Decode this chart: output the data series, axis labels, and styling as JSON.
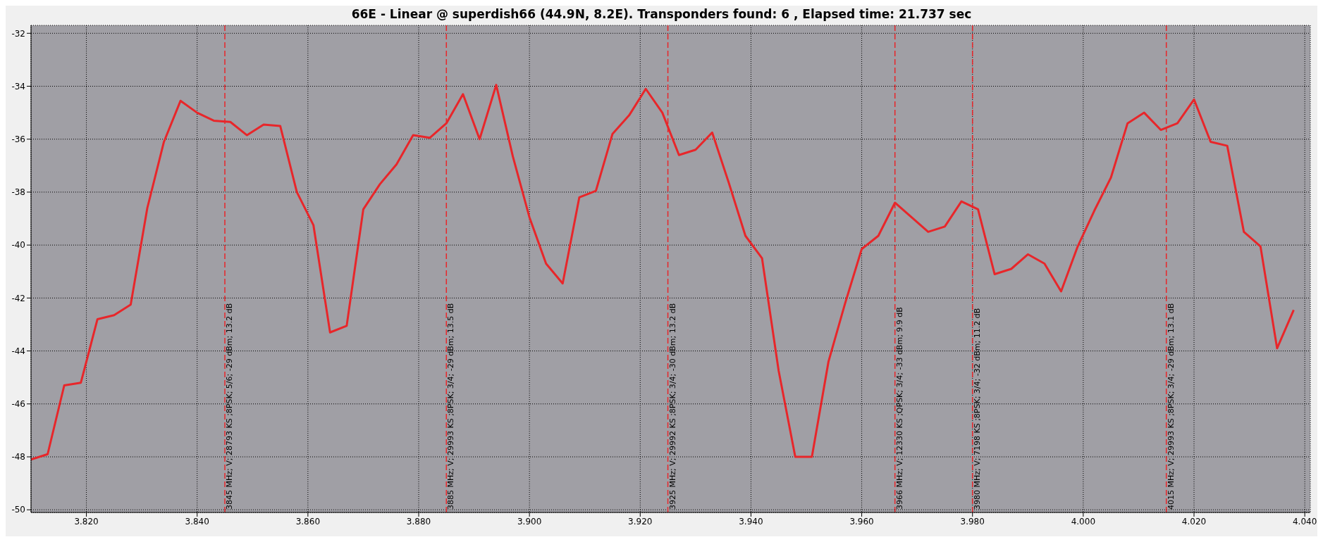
{
  "chart_data": {
    "type": "line",
    "title": "66E - Linear @ superdish66 (44.9N, 8.2E). Transponders found: 6 , Elapsed time: 21.737 sec",
    "x": [
      3.81,
      3.813,
      3.816,
      3.819,
      3.822,
      3.825,
      3.828,
      3.831,
      3.834,
      3.837,
      3.84,
      3.843,
      3.846,
      3.849,
      3.852,
      3.855,
      3.858,
      3.861,
      3.864,
      3.867,
      3.87,
      3.873,
      3.876,
      3.879,
      3.882,
      3.885,
      3.888,
      3.891,
      3.894,
      3.897,
      3.9,
      3.903,
      3.906,
      3.909,
      3.912,
      3.915,
      3.918,
      3.921,
      3.924,
      3.927,
      3.93,
      3.933,
      3.936,
      3.939,
      3.942,
      3.945,
      3.948,
      3.951,
      3.954,
      3.957,
      3.96,
      3.963,
      3.966,
      3.969,
      3.972,
      3.975,
      3.978,
      3.981,
      3.984,
      3.987,
      3.99,
      3.993,
      3.996,
      3.999,
      4.002,
      4.005,
      4.008,
      4.011,
      4.014,
      4.017,
      4.02,
      4.023,
      4.026,
      4.029,
      4.032,
      4.035,
      4.038
    ],
    "series": [
      {
        "color": "#e8262a",
        "values": [
          -48.1,
          -47.9,
          -45.3,
          -45.2,
          -42.8,
          -42.65,
          -42.25,
          -38.6,
          -36.1,
          -34.55,
          -35.0,
          -35.3,
          -35.35,
          -35.85,
          -35.45,
          -35.5,
          -38.0,
          -39.25,
          -43.3,
          -43.05,
          -38.65,
          -37.7,
          -36.95,
          -35.85,
          -35.95,
          -35.4,
          -34.3,
          -36.0,
          -33.95,
          -36.65,
          -38.95,
          -40.7,
          -41.45,
          -38.2,
          -37.95,
          -35.8,
          -35.1,
          -34.1,
          -35.0,
          -36.6,
          -36.4,
          -35.75,
          -37.65,
          -39.65,
          -40.5,
          -44.75,
          -48.0,
          -48.0,
          -44.4,
          -42.2,
          -40.15,
          -39.65,
          -38.4,
          -38.95,
          -39.5,
          -39.3,
          -38.35,
          -38.65,
          -41.1,
          -40.9,
          -40.35,
          -40.7,
          -41.75,
          -40.05,
          -38.7,
          -37.45,
          -35.4,
          -35.0,
          -35.65,
          -35.4,
          -34.5,
          -36.1,
          -36.25,
          -39.5,
          -40.05,
          -43.9,
          -42.45
        ]
      }
    ],
    "xlim": [
      3.81,
      4.041
    ],
    "xticks": [
      {
        "value": 3.82,
        "label": "3.820"
      },
      {
        "value": 3.84,
        "label": "3.840"
      },
      {
        "value": 3.86,
        "label": "3.860"
      },
      {
        "value": 3.88,
        "label": "3.880"
      },
      {
        "value": 3.9,
        "label": "3.900"
      },
      {
        "value": 3.92,
        "label": "3.920"
      },
      {
        "value": 3.94,
        "label": "3.940"
      },
      {
        "value": 3.96,
        "label": "3.960"
      },
      {
        "value": 3.98,
        "label": "3.980"
      },
      {
        "value": 4.0,
        "label": "4.000"
      },
      {
        "value": 4.02,
        "label": "4.020"
      },
      {
        "value": 4.04,
        "label": "4.040"
      }
    ],
    "ylim": [
      -50.1,
      -31.7
    ],
    "yticks": [
      -50,
      -48,
      -46,
      -44,
      -42,
      -40,
      -38,
      -36,
      -34,
      -32
    ],
    "grid": true,
    "legend": false,
    "marker": "none",
    "line_style": "solid",
    "ref_lines": [
      {
        "axis": "x",
        "value": 3.845,
        "label": "3845 MHz; V; 28793 KS ;8PSK; 5/6; -29 dBm; 13.2 dB",
        "color": "#e8262a",
        "line_style": "dashed"
      },
      {
        "axis": "x",
        "value": 3.885,
        "label": "3885 MHz; V; 29993 KS ;8PSK; 3/4; -29 dBm; 13.5 dB",
        "color": "#e8262a",
        "line_style": "dashed"
      },
      {
        "axis": "x",
        "value": 3.925,
        "label": "3925 MHz; V; 29992 KS ;8PSK; 3/4; -30 dBm; 13.2 dB",
        "color": "#e8262a",
        "line_style": "dashed"
      },
      {
        "axis": "x",
        "value": 3.966,
        "label": "3966 MHz; V; 12330 KS ;QPSK; 3/4; -33 dBm; 9.9 dB",
        "color": "#e8262a",
        "line_style": "dashed"
      },
      {
        "axis": "x",
        "value": 3.98,
        "label": "3980 MHz; V; 7198 KS ;8PSK; 3/4; -32 dBm; 11.2 dB",
        "color": "#e8262a",
        "line_style": "dashed"
      },
      {
        "axis": "x",
        "value": 4.015,
        "label": "4015 MHz; V; 29993 KS ;8PSK; 3/4; -29 dBm; 13.1 dB",
        "color": "#e8262a",
        "line_style": "dashed"
      }
    ]
  }
}
